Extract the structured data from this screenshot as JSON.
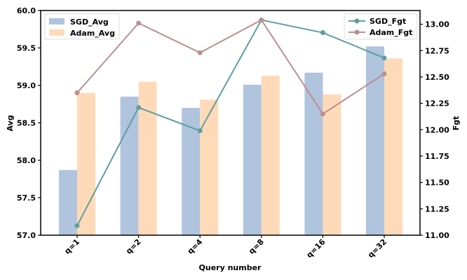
{
  "chart_data": {
    "type": "bar+line (dual axis)",
    "xlabel": "Query number",
    "ylabel_left": "Avg",
    "ylabel_right": "Fgt",
    "categories": [
      "q=1",
      "q=2",
      "q=4",
      "q=8",
      "q=16",
      "q=32"
    ],
    "ylim_left": [
      57.0,
      60.0
    ],
    "ylim_right": [
      11.0,
      13.13
    ],
    "yticks_left": [
      "57.0",
      "57.5",
      "58.0",
      "58.5",
      "59.0",
      "59.5",
      "60.0"
    ],
    "yticks_right": [
      "11.00",
      "11.25",
      "11.50",
      "11.75",
      "12.00",
      "12.25",
      "12.50",
      "12.75",
      "13.00"
    ],
    "grid": false,
    "bar_series": [
      {
        "name": "SGD_Avg",
        "color": "#b0c4de",
        "values": [
          57.87,
          58.85,
          58.7,
          59.01,
          59.17,
          59.52
        ]
      },
      {
        "name": "Adam_Avg",
        "color": "#ffdab9",
        "values": [
          58.9,
          59.05,
          58.81,
          59.13,
          58.88,
          59.36
        ]
      }
    ],
    "line_series": [
      {
        "name": "SGD_Fgt",
        "color": "#5f9ea0",
        "values": [
          11.09,
          12.21,
          11.99,
          13.04,
          12.92,
          12.68
        ]
      },
      {
        "name": "Adam_Fgt",
        "color": "#bc8f8f",
        "values": [
          12.35,
          13.01,
          12.73,
          13.04,
          12.15,
          12.53
        ]
      }
    ],
    "legend_left": "top-left",
    "legend_right": "top-right"
  }
}
